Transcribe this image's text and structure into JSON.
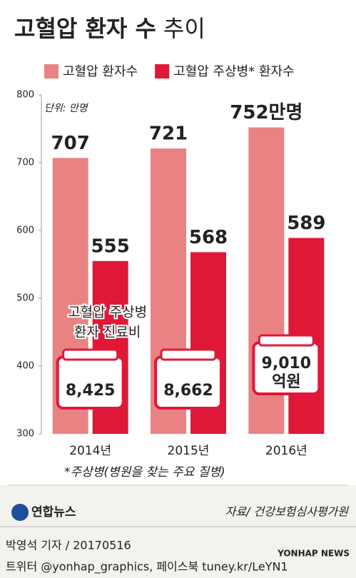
{
  "chart_data": {
    "type": "bar",
    "title": "고혈압 환자 수",
    "title_suffix": "추이",
    "unit": "단위: 만명",
    "categories": [
      "2014년",
      "2015년",
      "2016년"
    ],
    "series": [
      {
        "name": "고혈압 환자수",
        "color": "#e98383",
        "values": [
          707,
          721,
          752
        ],
        "value_labels": [
          "707",
          "721",
          "752만명"
        ]
      },
      {
        "name": "고혈압 주상병* 환자수",
        "color": "#e01838",
        "values": [
          555,
          568,
          589
        ],
        "value_labels": [
          "555",
          "568",
          "589"
        ]
      }
    ],
    "ylim": [
      300,
      800
    ],
    "yticks": [
      300,
      400,
      500,
      600,
      700,
      800
    ],
    "cost_title": [
      "고혈압 주상병",
      "환자 진료비"
    ],
    "cost_labels": [
      "8,425",
      "8,662",
      "9,010"
    ],
    "cost_unit": "억원",
    "footnote": "*주상병(병원을 찾는 주요 질병)",
    "source": "자료/ 건강보험심사평가원",
    "logo": "연합뉴스",
    "byline": "박영석 기자 / 20170516",
    "social": "트위터 @yonhap_graphics, 페이스북 tuney.kr/LeYN1",
    "watermark": "YONHAP NEWS"
  }
}
